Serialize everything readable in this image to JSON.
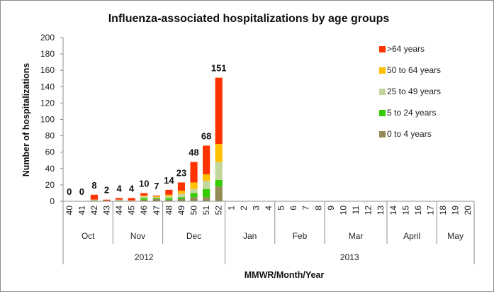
{
  "chart_data": {
    "type": "bar",
    "stacked": true,
    "title": "Influenza-associated hospitalizations by age groups",
    "ylabel": "Number of hospitalizations",
    "xlabel": "MMWR/Month/Year",
    "ylim": [
      0,
      200
    ],
    "yticks": [
      0,
      20,
      40,
      60,
      80,
      100,
      120,
      140,
      160,
      180,
      200
    ],
    "categories": [
      "40",
      "41",
      "42",
      "43",
      "44",
      "45",
      "46",
      "47",
      "48",
      "49",
      "50",
      "51",
      "52",
      "1",
      "2",
      "3",
      "4",
      "5",
      "6",
      "7",
      "8",
      "9",
      "10",
      "11",
      "12",
      "13",
      "14",
      "15",
      "16",
      "17",
      "18",
      "19",
      "20"
    ],
    "series": [
      {
        "name": "0 to 4 years",
        "color": "#948a54",
        "values": [
          0,
          0,
          1,
          1,
          1,
          0,
          2,
          3,
          2,
          3,
          5,
          5,
          18,
          0,
          0,
          0,
          0,
          0,
          0,
          0,
          0,
          0,
          0,
          0,
          0,
          0,
          0,
          0,
          0,
          0,
          0,
          0,
          0
        ]
      },
      {
        "name": "5 to 24 years",
        "color": "#33cc00",
        "values": [
          0,
          0,
          0,
          0,
          0,
          0,
          2,
          1,
          2,
          2,
          5,
          10,
          8,
          0,
          0,
          0,
          0,
          0,
          0,
          0,
          0,
          0,
          0,
          0,
          0,
          0,
          0,
          0,
          0,
          0,
          0,
          0,
          0
        ]
      },
      {
        "name": "25 to 49 years",
        "color": "#c4d79b",
        "values": [
          0,
          0,
          1,
          0,
          1,
          1,
          2,
          1,
          2,
          4,
          5,
          10,
          22,
          0,
          0,
          0,
          0,
          0,
          0,
          0,
          0,
          0,
          0,
          0,
          0,
          0,
          0,
          0,
          0,
          0,
          0,
          0,
          0
        ]
      },
      {
        "name": "50 to 64 years",
        "color": "#ffc000",
        "values": [
          0,
          0,
          0,
          0,
          0,
          0,
          1,
          1,
          2,
          4,
          8,
          8,
          22,
          0,
          0,
          0,
          0,
          0,
          0,
          0,
          0,
          0,
          0,
          0,
          0,
          0,
          0,
          0,
          0,
          0,
          0,
          0,
          0
        ]
      },
      {
        "name": ">64 years",
        "color": "#ff3300",
        "values": [
          0,
          0,
          6,
          1,
          2,
          3,
          3,
          1,
          6,
          10,
          25,
          35,
          81,
          0,
          0,
          0,
          0,
          0,
          0,
          0,
          0,
          0,
          0,
          0,
          0,
          0,
          0,
          0,
          0,
          0,
          0,
          0,
          0
        ]
      }
    ],
    "totals": [
      0,
      0,
      8,
      2,
      4,
      4,
      10,
      7,
      14,
      23,
      48,
      68,
      151
    ],
    "months": [
      {
        "label": "Oct",
        "from": 0,
        "to": 3
      },
      {
        "label": "Nov",
        "from": 4,
        "to": 7
      },
      {
        "label": "Dec",
        "from": 8,
        "to": 12
      },
      {
        "label": "Jan",
        "from": 13,
        "to": 16
      },
      {
        "label": "Feb",
        "from": 17,
        "to": 20
      },
      {
        "label": "Mar",
        "from": 21,
        "to": 25
      },
      {
        "label": "April",
        "from": 26,
        "to": 29
      },
      {
        "label": "May",
        "from": 30,
        "to": 32
      }
    ],
    "years": [
      {
        "label": "2012",
        "from": 0,
        "to": 12
      },
      {
        "label": "2013",
        "from": 13,
        "to": 32
      }
    ],
    "legend_order": [
      ">64 years",
      "50 to 64 years",
      "25 to 49 years",
      "5 to 24 years",
      "0 to 4 years"
    ],
    "legend_position": "right"
  }
}
